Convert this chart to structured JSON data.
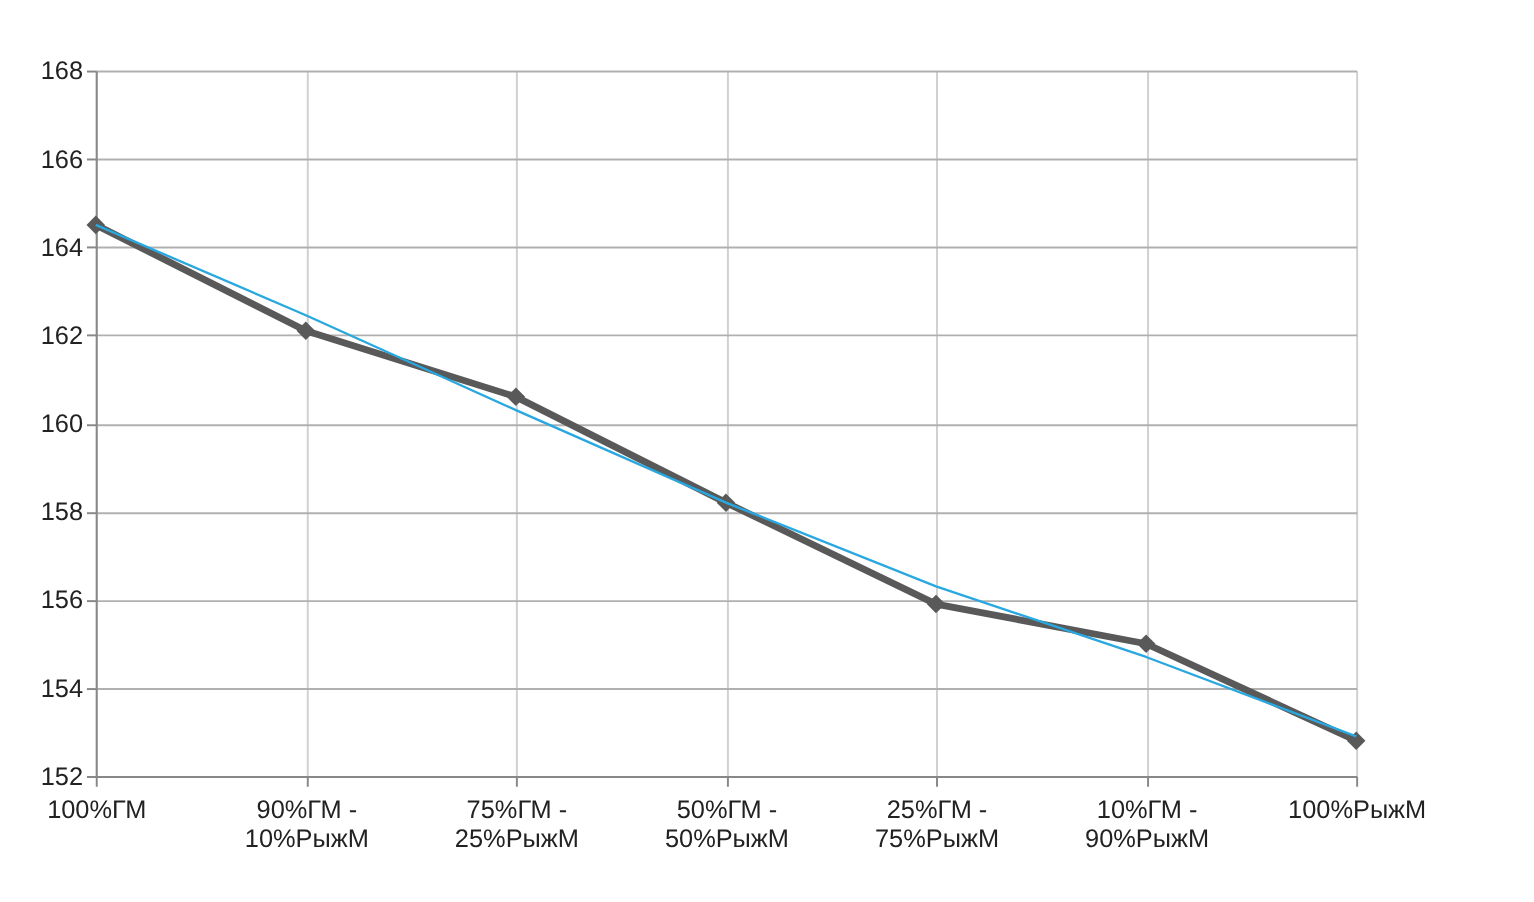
{
  "chart_data": {
    "type": "line",
    "categories": [
      "100%ГМ",
      "90%ГМ -\n10%РыжМ",
      "75%ГМ -\n25%РыжМ",
      "50%ГМ -\n50%РыжМ",
      "25%ГМ -\n75%РыжМ",
      "10%ГМ -\n90%РыжМ",
      "100%РыжМ"
    ],
    "series": [
      {
        "color": "#595959",
        "values": [
          164.5,
          162.1,
          160.6,
          158.2,
          155.9,
          155.0,
          152.8
        ],
        "marker": "diamond"
      },
      {
        "color": "#29a8e0",
        "values": [
          164.5,
          162.45,
          160.3,
          158.2,
          156.3,
          154.7,
          152.9
        ],
        "marker": "none"
      }
    ],
    "ylim": [
      152,
      168
    ],
    "yticks": [
      152,
      154,
      156,
      158,
      160,
      162,
      164,
      166,
      168
    ],
    "grid": true
  }
}
